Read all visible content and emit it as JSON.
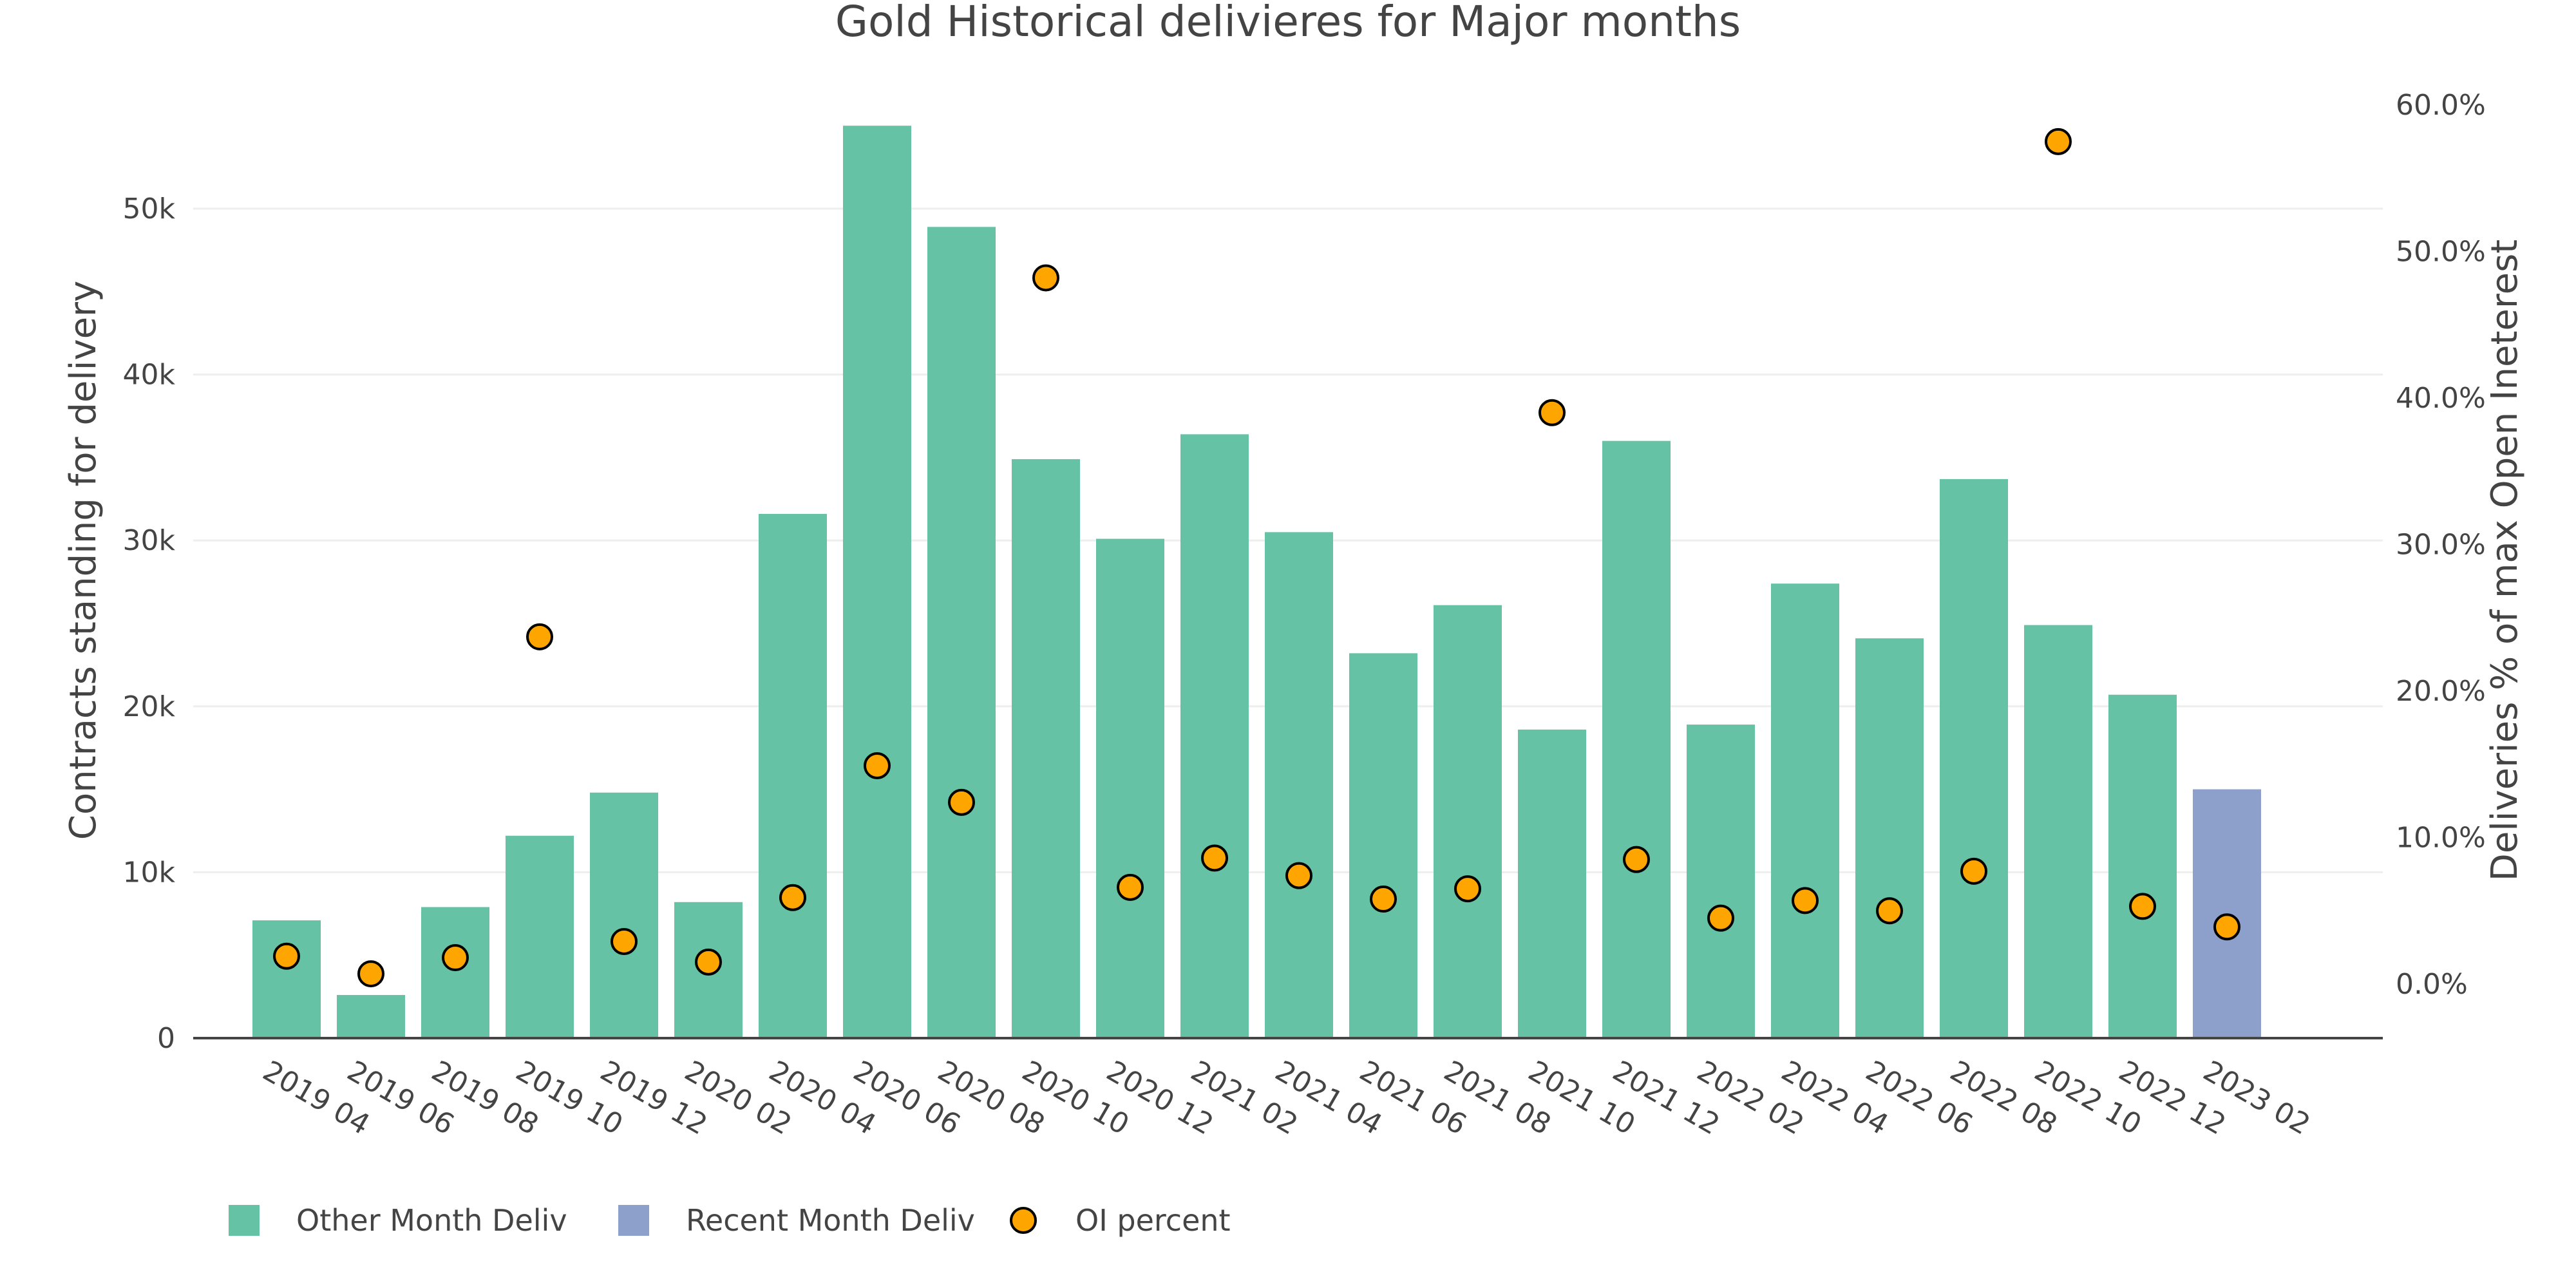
{
  "chart_data": {
    "type": "bar",
    "title": "Gold Historical delivieres for Major months",
    "xlabel": "",
    "ylabel": "Contracts standing for delivery",
    "y2label": "Deliveries % of max Open Ineterest",
    "categories": [
      "2019 04",
      "2019 06",
      "2019 08",
      "2019 10",
      "2019 12",
      "2020 02",
      "2020 04",
      "2020 06",
      "2020 08",
      "2020 10",
      "2020 12",
      "2021 02",
      "2021 04",
      "2021 06",
      "2021 08",
      "2021 10",
      "2021 12",
      "2022 02",
      "2022 04",
      "2022 06",
      "2022 08",
      "2022 10",
      "2022 12",
      "2023 02"
    ],
    "series": [
      {
        "name": "Other Month Deliv",
        "kind": "bar",
        "axis": "y",
        "color": "#66c2a5",
        "values": [
          7100,
          2600,
          7900,
          12200,
          14800,
          8200,
          31600,
          55000,
          48900,
          34900,
          30100,
          36400,
          30500,
          23200,
          26100,
          18600,
          36000,
          18900,
          27400,
          24100,
          33700,
          24900,
          20700,
          null
        ]
      },
      {
        "name": "Recent Month Deliv",
        "kind": "bar",
        "axis": "y",
        "color": "#8da0cb",
        "values": [
          null,
          null,
          null,
          null,
          null,
          null,
          null,
          null,
          null,
          null,
          null,
          null,
          null,
          null,
          null,
          null,
          null,
          null,
          null,
          null,
          null,
          null,
          null,
          15000
        ]
      },
      {
        "name": "OI percent",
        "kind": "scatter",
        "axis": "y2",
        "color": "#ffa500",
        "values": [
          1.9,
          0.7,
          1.8,
          23.7,
          2.9,
          1.5,
          5.9,
          14.9,
          12.4,
          48.2,
          6.6,
          8.6,
          7.4,
          5.8,
          6.5,
          39.0,
          8.5,
          4.5,
          5.7,
          5.0,
          7.7,
          57.5,
          5.3,
          3.9
        ]
      }
    ],
    "ylim": [
      0,
      56000
    ],
    "yticks": [
      0,
      10000,
      20000,
      30000,
      40000,
      50000
    ],
    "ytick_labels": [
      "0",
      "10k",
      "20k",
      "30k",
      "40k",
      "50k"
    ],
    "y2lim": [
      -3.7,
      60.0
    ],
    "y2ticks": [
      0,
      10,
      20,
      30,
      40,
      50,
      60
    ],
    "y2tick_labels": [
      "0.0%",
      "10.0%",
      "20.0%",
      "30.0%",
      "40.0%",
      "50.0%",
      "60.0%"
    ],
    "grid": true,
    "legend": {
      "placement": "bottom-left",
      "orientation": "horizontal"
    }
  }
}
